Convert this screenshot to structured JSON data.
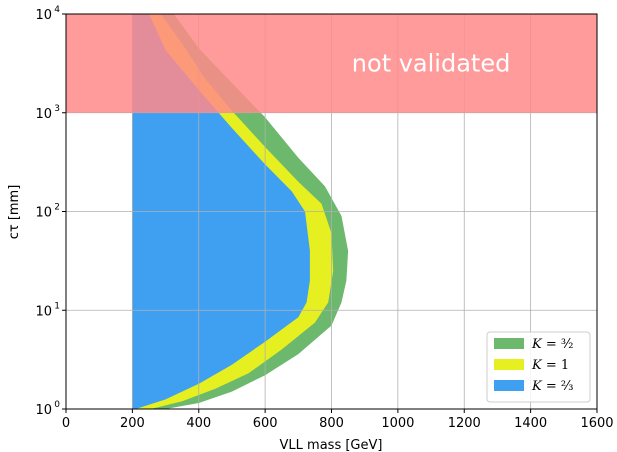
{
  "chart_data": {
    "type": "area",
    "title": "",
    "xlabel": "VLL mass [GeV]",
    "ylabel": "cτ [mm]",
    "xlim": [
      0,
      1600
    ],
    "ylim": [
      1,
      10000
    ],
    "yscale": "log",
    "grid": true,
    "x_ticks": [
      "0",
      "200",
      "400",
      "600",
      "800",
      "1000",
      "1200",
      "1400",
      "1600"
    ],
    "y_ticks": [
      {
        "base": "10",
        "exp": "0"
      },
      {
        "base": "10",
        "exp": "1"
      },
      {
        "base": "10",
        "exp": "2"
      },
      {
        "base": "10",
        "exp": "3"
      },
      {
        "base": "10",
        "exp": "4"
      }
    ],
    "overlay": {
      "label": "not validated",
      "y_from": 1000,
      "y_to": 10000,
      "color": "#ff8a8a"
    },
    "legend_position": "lower-right",
    "series": [
      {
        "name": "K = 3/2",
        "color": "#6cb86c",
        "points": [
          [
            200,
            1
          ],
          [
            200,
            10000
          ],
          [
            325,
            10000
          ],
          [
            400,
            4500
          ],
          [
            500,
            2000
          ],
          [
            600,
            900
          ],
          [
            700,
            350
          ],
          [
            780,
            180
          ],
          [
            830,
            90
          ],
          [
            850,
            40
          ],
          [
            845,
            20
          ],
          [
            830,
            12
          ],
          [
            800,
            7
          ],
          [
            700,
            3.6
          ],
          [
            600,
            2.2
          ],
          [
            500,
            1.5
          ],
          [
            400,
            1.15
          ],
          [
            300,
            1
          ],
          [
            200,
            1
          ]
        ]
      },
      {
        "name": "K = 1",
        "color": "#e6f020",
        "points": [
          [
            200,
            1
          ],
          [
            200,
            10000
          ],
          [
            285,
            10000
          ],
          [
            350,
            5000
          ],
          [
            420,
            2200
          ],
          [
            500,
            1050
          ],
          [
            600,
            450
          ],
          [
            700,
            200
          ],
          [
            770,
            120
          ],
          [
            800,
            60
          ],
          [
            805,
            25
          ],
          [
            790,
            12
          ],
          [
            750,
            7.5
          ],
          [
            650,
            4
          ],
          [
            550,
            2.3
          ],
          [
            450,
            1.6
          ],
          [
            350,
            1.2
          ],
          [
            255,
            1
          ],
          [
            200,
            1
          ]
        ]
      },
      {
        "name": "K = 2/3",
        "color": "#3f9ff0",
        "points": [
          [
            200,
            1
          ],
          [
            200,
            10000
          ],
          [
            250,
            10000
          ],
          [
            300,
            4300
          ],
          [
            400,
            1700
          ],
          [
            500,
            700
          ],
          [
            600,
            300
          ],
          [
            680,
            160
          ],
          [
            720,
            100
          ],
          [
            735,
            40
          ],
          [
            735,
            20
          ],
          [
            725,
            12
          ],
          [
            700,
            8.5
          ],
          [
            600,
            4.8
          ],
          [
            500,
            2.8
          ],
          [
            400,
            1.8
          ],
          [
            300,
            1.25
          ],
          [
            210,
            1
          ],
          [
            200,
            1
          ]
        ]
      }
    ]
  },
  "legend": [
    {
      "lhs": "K",
      "eq": " = ",
      "rhs": "³⁄₂"
    },
    {
      "lhs": "K",
      "eq": " = ",
      "rhs": "1"
    },
    {
      "lhs": "K",
      "eq": " = ",
      "rhs": "²⁄₃"
    }
  ]
}
